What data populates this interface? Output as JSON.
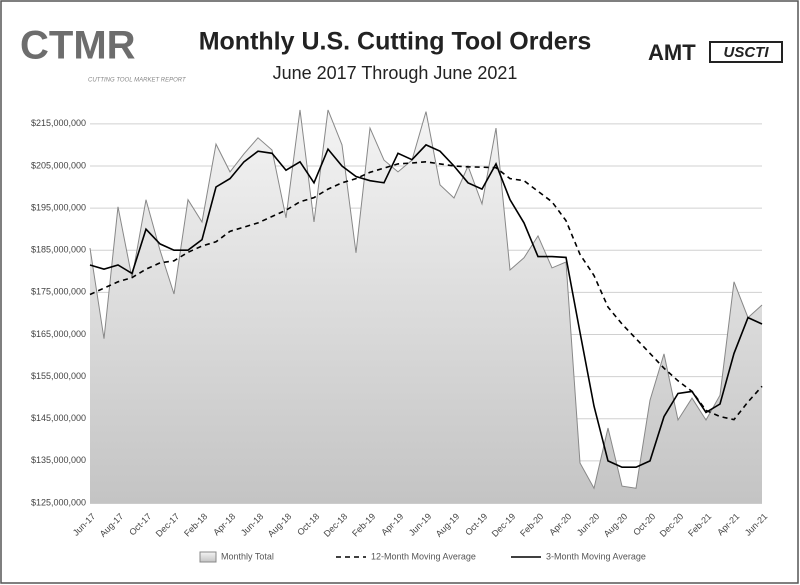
{
  "chart_data": {
    "type": "line",
    "title": "Monthly U.S. Cutting Tool Orders",
    "subtitle": "June 2017 Through June 2021",
    "logo_texts": [
      "CTMR",
      "CUTTING TOOL MARKET REPORT",
      "AMT",
      "USCTI"
    ],
    "categories": [
      "Jun-17",
      null,
      "Aug-17",
      null,
      "Oct-17",
      null,
      "Dec-17",
      null,
      "Feb-18",
      null,
      "Apr-18",
      null,
      "Jun-18",
      null,
      "Aug-18",
      null,
      "Oct-18",
      null,
      "Dec-18",
      null,
      "Feb-19",
      null,
      "Apr-19",
      null,
      "Jun-19",
      null,
      "Aug-19",
      null,
      "Oct-19",
      null,
      "Dec-19",
      null,
      "Feb-20",
      null,
      "Apr-20",
      null,
      "Jun-20",
      null,
      "Aug-20",
      null,
      "Oct-20",
      null,
      "Dec-20",
      null,
      "Feb-21",
      null,
      "Apr-21",
      null,
      "Jun-21"
    ],
    "ylim": [
      125000000,
      219000000
    ],
    "yticks": [
      {
        "value": 125000000,
        "label": "$125,000,000"
      },
      {
        "value": 135000000,
        "label": "$135,000,000"
      },
      {
        "value": 145000000,
        "label": "$145,000,000"
      },
      {
        "value": 155000000,
        "label": "$155,000,000"
      },
      {
        "value": 165000000,
        "label": "$165,000,000"
      },
      {
        "value": 175000000,
        "label": "$175,000,000"
      },
      {
        "value": 185000000,
        "label": "$185,000,000"
      },
      {
        "value": 195000000,
        "label": "$195,000,000"
      },
      {
        "value": 205000000,
        "label": "$205,000,000"
      },
      {
        "value": 215000000,
        "label": "$215,000,000"
      }
    ],
    "grid": true,
    "legend": "bottom",
    "series": [
      {
        "name": "Monthly Total",
        "color": "#888888",
        "fill": true,
        "dash": false,
        "values": [
          185500000,
          164000000,
          195300000,
          178400000,
          197000000,
          185000000,
          174600000,
          197000000,
          191700000,
          210200000,
          203600000,
          207900000,
          211700000,
          208800000,
          192700000,
          218300000,
          191700000,
          218300000,
          210000000,
          184400000,
          214000000,
          206400000,
          203600000,
          206400000,
          217900000,
          200500000,
          197400000,
          205000000,
          196000000,
          214000000,
          180300000,
          183200000,
          188400000,
          180800000,
          182200000,
          134500000,
          128500000,
          142800000,
          129000000,
          128500000,
          149400000,
          160400000,
          144700000,
          149900000,
          144700000,
          150600000,
          177500000,
          169000000,
          172000000
        ]
      },
      {
        "name": "12-Month Moving Average",
        "color": "#000000",
        "fill": false,
        "dash": true,
        "values": [
          174500000,
          176000000,
          177500000,
          178500000,
          180500000,
          182000000,
          182500000,
          184500000,
          186000000,
          187000000,
          189500000,
          190500000,
          191500000,
          193000000,
          194500000,
          196500000,
          197500000,
          199500000,
          201000000,
          202000000,
          203500000,
          204500000,
          205500000,
          205700000,
          206000000,
          205500000,
          205000000,
          204800000,
          204700000,
          204600000,
          202000000,
          201500000,
          199000000,
          196500000,
          192000000,
          184000000,
          179000000,
          171500000,
          167500000,
          164000000,
          160500000,
          157000000,
          154000000,
          151500000,
          147000000,
          145500000,
          144800000,
          149000000,
          152700000
        ]
      },
      {
        "name": "3-Month Moving Average",
        "color": "#000000",
        "fill": false,
        "dash": false,
        "values": [
          181500000,
          180500000,
          181500000,
          179500000,
          190000000,
          186500000,
          185000000,
          185000000,
          187500000,
          200000000,
          202000000,
          206000000,
          208500000,
          208000000,
          204000000,
          206000000,
          201000000,
          209000000,
          205000000,
          202500000,
          201500000,
          201000000,
          208000000,
          206500000,
          210000000,
          208500000,
          205000000,
          201000000,
          199500000,
          205500000,
          197000000,
          191500000,
          183500000,
          183500000,
          183300000,
          165500000,
          148000000,
          135000000,
          133500000,
          133500000,
          135000000,
          145500000,
          151000000,
          151500000,
          146500000,
          148500000,
          160500000,
          169000000,
          167500000
        ]
      }
    ]
  }
}
